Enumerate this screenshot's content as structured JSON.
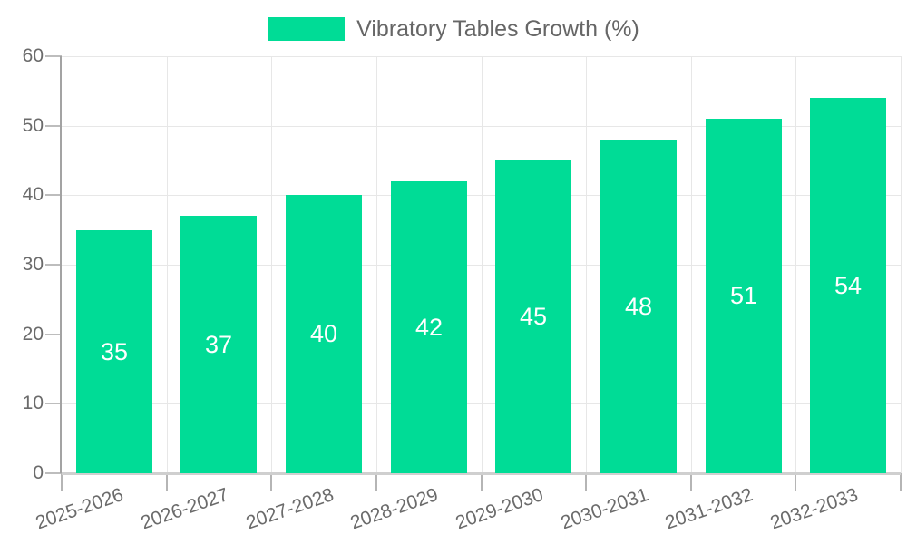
{
  "chart_data": {
    "type": "bar",
    "title": "Vibratory Tables Growth (%)",
    "legend": {
      "label": "Vibratory Tables Growth (%)",
      "position": "top-center"
    },
    "categories": [
      "2025-2026",
      "2026-2027",
      "2027-2028",
      "2028-2029",
      "2029-2030",
      "2030-2031",
      "2031-2032",
      "2032-2033"
    ],
    "values": [
      35,
      37,
      40,
      42,
      45,
      48,
      51,
      54
    ],
    "xlabel": "",
    "ylabel": "",
    "ylim": [
      0,
      60
    ],
    "yticks": [
      0,
      10,
      20,
      30,
      40,
      50,
      60
    ],
    "grid": "horizontal-and-vertical",
    "x_label_rotation_deg": -19,
    "colors": {
      "bar": "#00DC96",
      "bar_value_label": "#ffffff",
      "axis_text": "#6b6b6b",
      "legend_text": "#666666",
      "gridline": "#e7e7e7",
      "y_axis_line": "#a3a3a3",
      "x_axis_line": "#cfcfcf",
      "tick": "#b5b5b5",
      "background": "#ffffff"
    }
  }
}
